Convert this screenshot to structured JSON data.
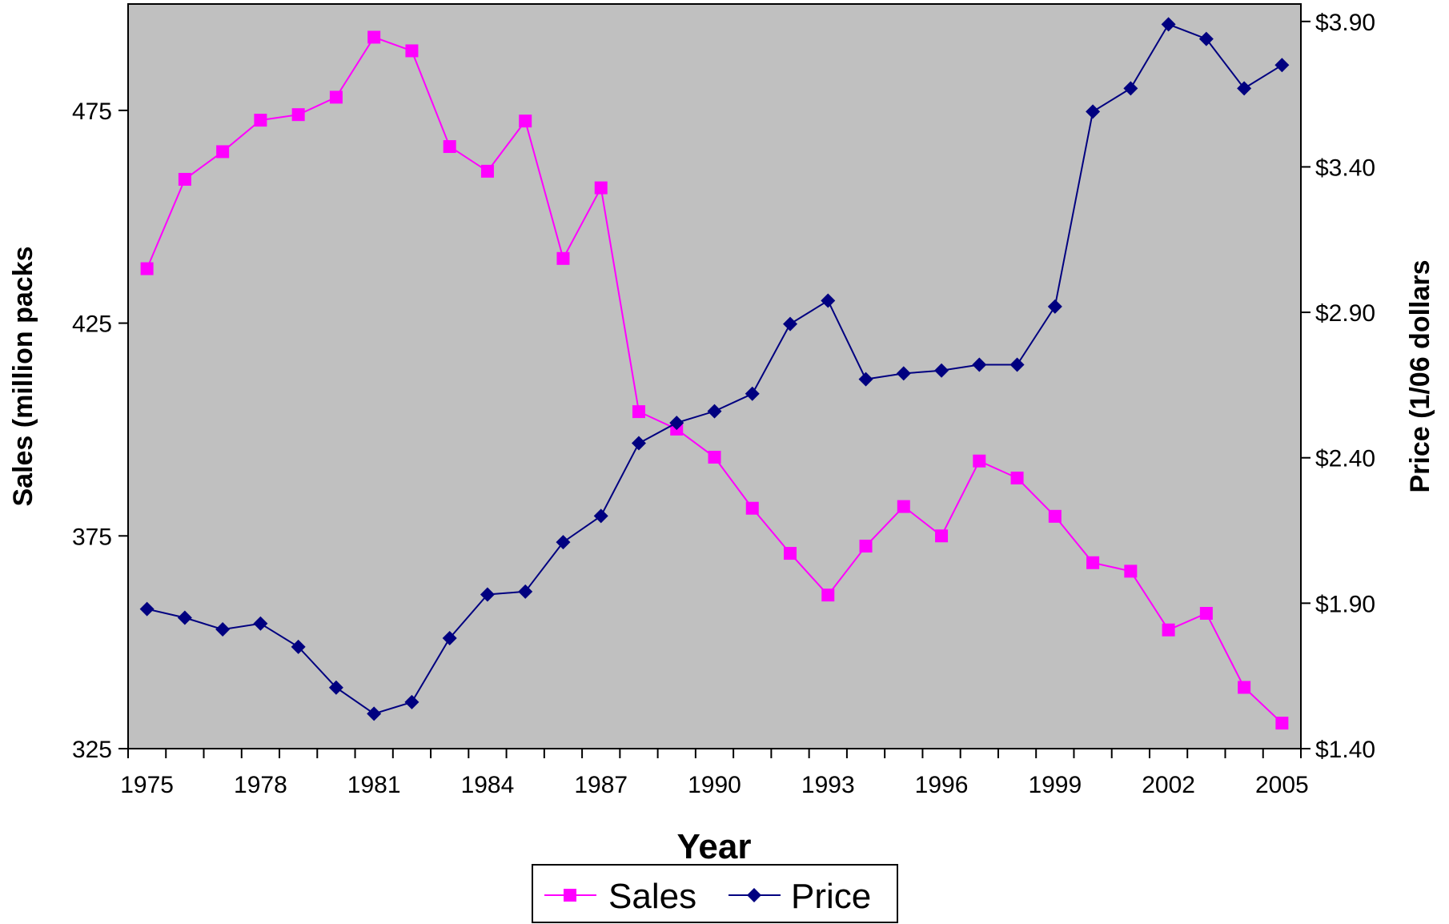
{
  "chart_data": {
    "type": "line",
    "x": [
      1975,
      1976,
      1977,
      1978,
      1979,
      1980,
      1981,
      1982,
      1983,
      1984,
      1985,
      1986,
      1987,
      1988,
      1989,
      1990,
      1991,
      1992,
      1993,
      1994,
      1995,
      1996,
      1997,
      1998,
      1999,
      2000,
      2001,
      2002,
      2003,
      2004,
      2005
    ],
    "x_tick_labels": [
      "1975",
      "1978",
      "1981",
      "1984",
      "1987",
      "1990",
      "1993",
      "1996",
      "1999",
      "2002",
      "2005"
    ],
    "xlabel": "Year",
    "ylabel_left": "Sales (million packs",
    "ylabel_right": "Price (1/06 dollars",
    "y_left_ticks": [
      "325",
      "375",
      "425",
      "475"
    ],
    "y_left_lim": [
      325,
      500
    ],
    "y_right_ticks": [
      "$1.40",
      "$1.90",
      "$2.40",
      "$2.90",
      "$3.40",
      "$3.90"
    ],
    "y_right_lim": [
      1.4,
      3.96
    ],
    "legend_position": "bottom",
    "series": [
      {
        "name": "Sales",
        "axis": "left",
        "color": "#ff00ff",
        "marker": "square",
        "values": [
          437.8,
          458.8,
          465.3,
          472.7,
          474,
          478.1,
          492.2,
          489,
          466.5,
          460.7,
          472.5,
          440.2,
          456.8,
          404.2,
          400.1,
          393.5,
          381.5,
          370.9,
          361.1,
          372.6,
          381.9,
          375,
          392.6,
          388.6,
          379.6,
          368.7,
          366.7,
          352.9,
          356.8,
          339.4,
          331
        ]
      },
      {
        "name": "Price",
        "axis": "right",
        "color": "#000080",
        "marker": "diamond",
        "values": [
          1.88,
          1.85,
          1.81,
          1.83,
          1.75,
          1.61,
          1.52,
          1.56,
          1.78,
          1.93,
          1.94,
          2.11,
          2.2,
          2.45,
          2.52,
          2.56,
          2.62,
          2.86,
          2.94,
          2.67,
          2.69,
          2.7,
          2.72,
          2.72,
          2.92,
          3.59,
          3.67,
          3.89,
          3.84,
          3.67,
          3.75
        ]
      }
    ]
  }
}
